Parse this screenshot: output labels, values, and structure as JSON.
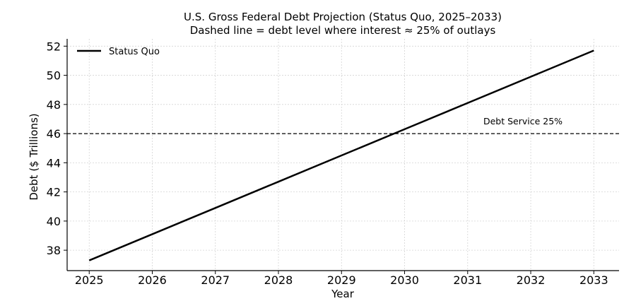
{
  "chart_data": {
    "type": "line",
    "title": "U.S. Gross Federal Debt Projection (Status Quo, 2025–2033)",
    "subtitle": "Dashed line = debt level where interest ≈ 25% of outlays",
    "xlabel": "Year",
    "ylabel": "Debt ($ Trillions)",
    "x": [
      2025,
      2026,
      2027,
      2028,
      2029,
      2030,
      2031,
      2032,
      2033
    ],
    "series": [
      {
        "name": "Status Quo",
        "color": "#000000",
        "values": [
          37.3,
          39.1,
          40.9,
          42.7,
          44.5,
          46.3,
          48.1,
          49.9,
          51.7
        ]
      }
    ],
    "reference_line": {
      "y": 46,
      "style": "dashed",
      "label": "Debt Service 25%"
    },
    "xlim": [
      2024.65,
      2033.4
    ],
    "ylim": [
      36.6,
      52.5
    ],
    "yticks": [
      38,
      40,
      42,
      44,
      46,
      48,
      50,
      52
    ],
    "xticks": [
      2025,
      2026,
      2027,
      2028,
      2029,
      2030,
      2031,
      2032,
      2033
    ],
    "grid": true,
    "legend_position": "top-left"
  }
}
